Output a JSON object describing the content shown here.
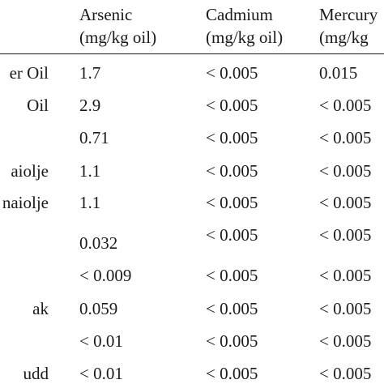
{
  "headers": [
    {
      "line1": "Arsenic",
      "line2": "(mg/kg oil)"
    },
    {
      "line1": "Cadmium",
      "line2": "(mg/kg oil)"
    },
    {
      "line1": "Mercury",
      "line2": "(mg/kg"
    }
  ],
  "rows": [
    {
      "name": "er Oil",
      "arsenic": "1.7",
      "cadmium": "< 0.005",
      "mercury": "0.015"
    },
    {
      "name": "Oil",
      "arsenic": "2.9",
      "cadmium": "< 0.005",
      "mercury": "< 0.005"
    },
    {
      "name": "",
      "arsenic": "0.71",
      "cadmium": "< 0.005",
      "mercury": "< 0.005"
    },
    {
      "name": "aiolje",
      "arsenic": "1.1",
      "cadmium": "< 0.005",
      "mercury": "< 0.005"
    },
    {
      "name": "naiolje",
      "arsenic": "1.1",
      "cadmium": "< 0.005",
      "mercury": "< 0.005"
    },
    {
      "name": "",
      "arsenic": "0.032",
      "cadmium": "< 0.005",
      "mercury": "< 0.005"
    },
    {
      "name": "",
      "arsenic": "< 0.009",
      "cadmium": "< 0.005",
      "mercury": "< 0.005"
    },
    {
      "name": "ak",
      "arsenic": "0.059",
      "cadmium": "< 0.005",
      "mercury": "< 0.005"
    },
    {
      "name": "",
      "arsenic": "< 0.01",
      "cadmium": "< 0.005",
      "mercury": "< 0.005"
    },
    {
      "name": "udd",
      "arsenic": "< 0.01",
      "cadmium": "< 0.005",
      "mercury": "< 0.005"
    }
  ]
}
